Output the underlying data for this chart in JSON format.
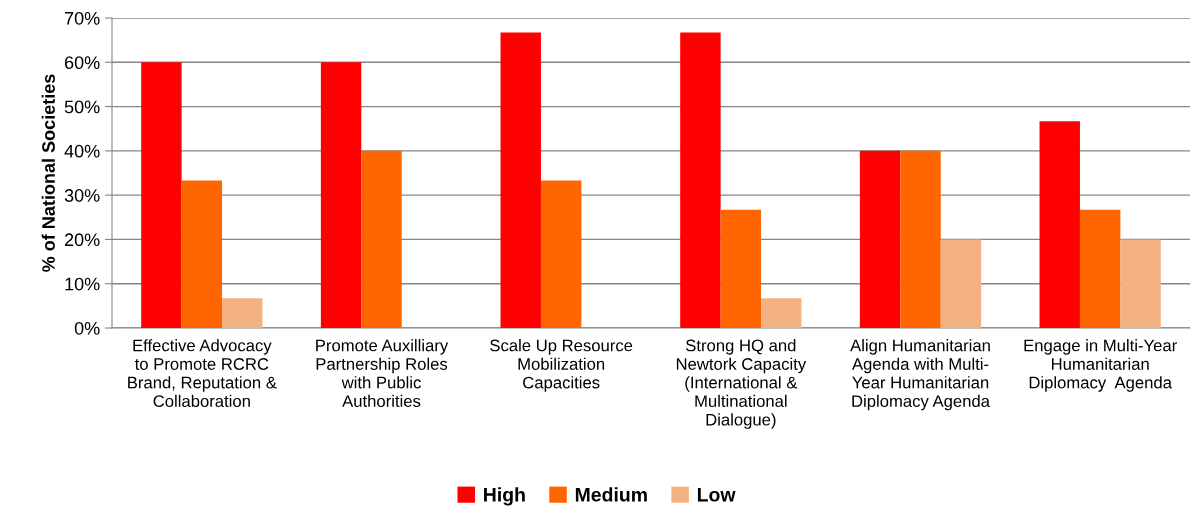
{
  "chart_data": {
    "type": "bar",
    "ylabel": "% of National Societies",
    "categories": [
      "Effective Advocacy\nto Promote RCRC\nBrand, Reputation &\nCollaboration",
      "Promote Auxilliary\nPartnership Roles\nwith Public\nAuthorities",
      "Scale Up Resource\nMobilization\nCapacities",
      "Strong HQ and\nNewtork Capacity\n(International &\nMultinational\nDialogue)",
      "Align Humanitarian\nAgenda with Multi-\nYear Humanitarian\nDiplomacy Agenda",
      "Engage in Multi-Year\nHumanitarian\nDiplomacy  Agenda"
    ],
    "series": [
      {
        "name": "High",
        "color": "#ff0000",
        "values": [
          60,
          60,
          66.7,
          66.7,
          40,
          46.7
        ]
      },
      {
        "name": "Medium",
        "color": "#ff6600",
        "values": [
          33.3,
          40,
          33.3,
          26.7,
          40,
          26.7
        ]
      },
      {
        "name": "Low",
        "color": "#f4b183",
        "values": [
          6.7,
          0,
          0,
          6.7,
          20,
          20
        ]
      }
    ],
    "ylim": [
      0,
      70
    ],
    "yticks": [
      {
        "value": 0,
        "label": "0%"
      },
      {
        "value": 10,
        "label": "10%"
      },
      {
        "value": 20,
        "label": "20%"
      },
      {
        "value": 30,
        "label": "30%"
      },
      {
        "value": 40,
        "label": "40%"
      },
      {
        "value": 50,
        "label": "50%"
      },
      {
        "value": 60,
        "label": "60%"
      },
      {
        "value": 70,
        "label": "70%"
      }
    ],
    "grid": "y",
    "legend": "bottom"
  }
}
